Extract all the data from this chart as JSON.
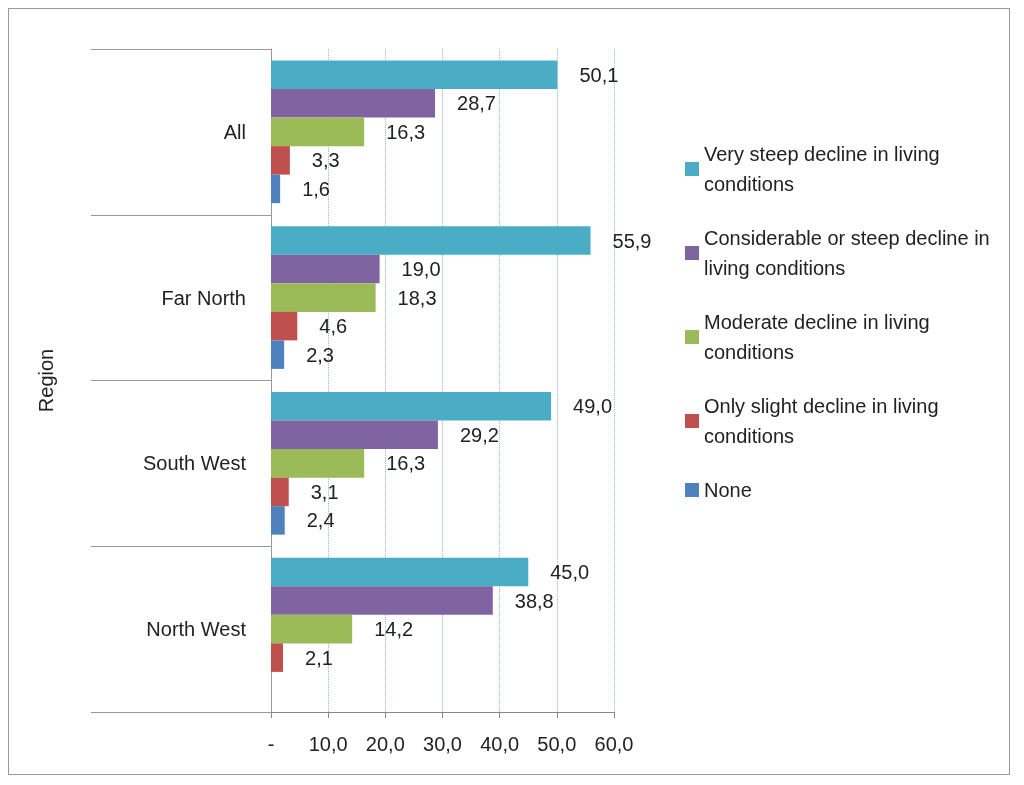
{
  "chart_data": {
    "type": "bar",
    "orientation": "horizontal",
    "ylabel": "Region",
    "categories": [
      "All",
      "Far North",
      "South West",
      "North West"
    ],
    "series": [
      {
        "name": "Very steep decline in living conditions",
        "color": "#4bacc6",
        "values": [
          50.1,
          55.9,
          49.0,
          45.0
        ],
        "value_labels": [
          "50,1",
          "55,9",
          "49,0",
          "45,0"
        ]
      },
      {
        "name": "Considerable or steep decline in living conditions",
        "color": "#8064a2",
        "values": [
          28.7,
          19.0,
          29.2,
          38.8
        ],
        "value_labels": [
          "28,7",
          "19,0",
          "29,2",
          "38,8"
        ]
      },
      {
        "name": "Moderate decline in living conditions",
        "color": "#9bbb59",
        "values": [
          16.3,
          18.3,
          16.3,
          14.2
        ],
        "value_labels": [
          "16,3",
          "18,3",
          "16,3",
          "14,2"
        ]
      },
      {
        "name": "Only slight decline in living conditions",
        "color": "#c0504d",
        "values": [
          3.3,
          4.6,
          3.1,
          2.1
        ],
        "value_labels": [
          "3,3",
          "4,6",
          "3,1",
          "2,1"
        ]
      },
      {
        "name": "None",
        "color": "#4f81bd",
        "values": [
          1.6,
          2.3,
          2.4,
          null
        ],
        "value_labels": [
          "1,6",
          "2,3",
          "2,4",
          null
        ]
      }
    ],
    "xlim": [
      0,
      60
    ],
    "xticks": [
      {
        "value": 0,
        "label": "-"
      },
      {
        "value": 10,
        "label": "10,0"
      },
      {
        "value": 20,
        "label": "20,0"
      },
      {
        "value": 30,
        "label": "30,0"
      },
      {
        "value": 40,
        "label": "40,0"
      },
      {
        "value": 50,
        "label": "50,0"
      },
      {
        "value": 60,
        "label": "60,0"
      }
    ],
    "grid": "x",
    "legend": "right"
  }
}
